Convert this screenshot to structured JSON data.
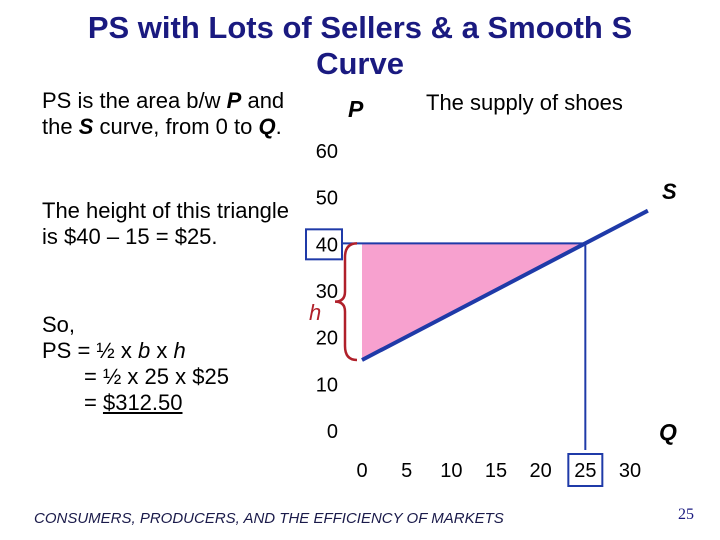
{
  "title": "PS with Lots of Sellers & a Smooth S Curve",
  "explanation": {
    "line1_pre": "PS is the area b/w ",
    "line1_p": "P",
    "line1_mid": "  and the ",
    "line1_s": "S",
    "line1_post": " curve, from 0 to ",
    "line1_q": "Q",
    "line1_end": ".",
    "line2": "The height of this triangle is $40 – 15 = $25.",
    "so": "So,",
    "ps_lhs": "PS = ½ x ",
    "ps_b": "b",
    "ps_x": " x ",
    "ps_h": "h",
    "step2": "= ½ x 25 x $25",
    "step3_eq": "= ",
    "step3_val": "$312.50"
  },
  "chart_data": {
    "type": "line",
    "subtitle": "The supply of shoes",
    "y_axis_label": "P",
    "x_axis_label": "Q",
    "x_ticks": [
      0,
      5,
      10,
      15,
      20,
      25,
      30
    ],
    "y_ticks": [
      0,
      10,
      20,
      30,
      40,
      50,
      60
    ],
    "xlim": [
      0,
      30
    ],
    "ylim": [
      0,
      60
    ],
    "grid": false,
    "series": [
      {
        "name": "S",
        "points": [
          [
            0,
            15
          ],
          [
            25,
            40
          ],
          [
            32,
            47
          ]
        ]
      }
    ],
    "producer_surplus": {
      "vertices": [
        [
          0,
          15
        ],
        [
          0,
          40
        ],
        [
          25,
          40
        ]
      ],
      "price": 40,
      "quantity": 25
    },
    "height_label": "h",
    "highlighted_ticks": {
      "x": 25,
      "y": 40
    },
    "colors": {
      "supply_line": "#1f3aa8",
      "surplus_fill": "#f7a1cf",
      "guide": "#1f3aa8",
      "brace": "#b0202a",
      "title": "#1a1a80"
    }
  },
  "footer": "CONSUMERS, PRODUCERS, AND THE EFFICIENCY OF MARKETS",
  "page_number": "25"
}
